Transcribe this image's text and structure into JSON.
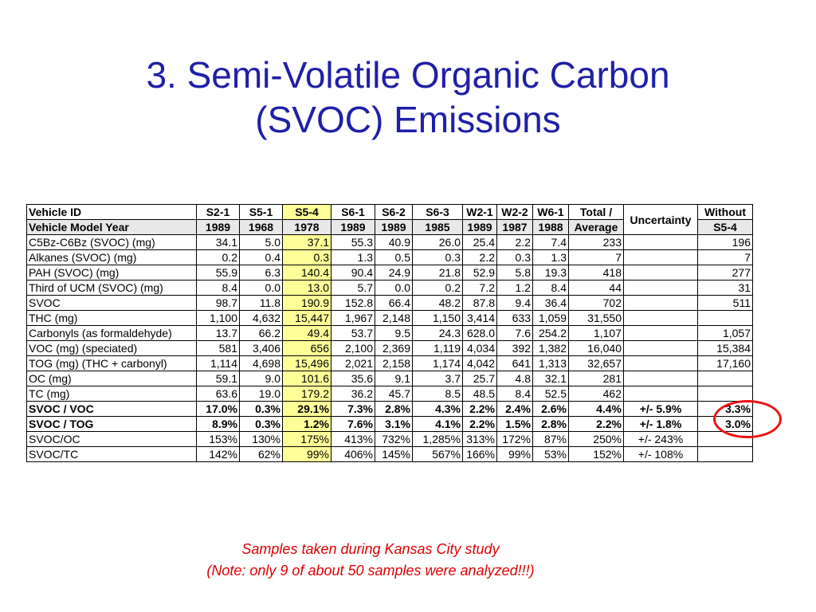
{
  "title": {
    "line1": "3. Semi-Volatile Organic Carbon",
    "line2": "(SVOC) Emissions"
  },
  "table": {
    "header1": [
      "Vehicle ID",
      "S2-1",
      "S5-1",
      "S5-4",
      "S6-1",
      "S6-2",
      "S6-3",
      "W2-1",
      "W2-2",
      "W6-1",
      "Total /",
      "Uncertainty",
      "Without"
    ],
    "header2": [
      "Vehicle Model Year",
      "1989",
      "1968",
      "1978",
      "1989",
      "1989",
      "1985",
      "1989",
      "1987",
      "1988",
      "Average",
      "S5-4"
    ],
    "rows": [
      [
        "C5Bz-C6Bz (SVOC) (mg)",
        "34.1",
        "5.0",
        "37.1",
        "55.3",
        "40.9",
        "26.0",
        "25.4",
        "2.2",
        "7.4",
        "233",
        "",
        "196"
      ],
      [
        "Alkanes (SVOC) (mg)",
        "0.2",
        "0.4",
        "0.3",
        "1.3",
        "0.5",
        "0.3",
        "2.2",
        "0.3",
        "1.3",
        "7",
        "",
        "7"
      ],
      [
        "PAH (SVOC) (mg)",
        "55.9",
        "6.3",
        "140.4",
        "90.4",
        "24.9",
        "21.8",
        "52.9",
        "5.8",
        "19.3",
        "418",
        "",
        "277"
      ],
      [
        "Third of UCM (SVOC) (mg)",
        "8.4",
        "0.0",
        "13.0",
        "5.7",
        "0.0",
        "0.2",
        "7.2",
        "1.2",
        "8.4",
        "44",
        "",
        "31"
      ],
      [
        "SVOC",
        "98.7",
        "11.8",
        "190.9",
        "152.8",
        "66.4",
        "48.2",
        "87.8",
        "9.4",
        "36.4",
        "702",
        "",
        "511"
      ],
      [
        "THC (mg)",
        "1,100",
        "4,632",
        "15,447",
        "1,967",
        "2,148",
        "1,150",
        "3,414",
        "633",
        "1,059",
        "31,550",
        "",
        ""
      ],
      [
        "Carbonyls (as formaldehyde)",
        "13.7",
        "66.2",
        "49.4",
        "53.7",
        "9.5",
        "24.3",
        "628.0",
        "7.6",
        "254.2",
        "1,107",
        "",
        "1,057"
      ],
      [
        "VOC (mg) (speciated)",
        "581",
        "3,406",
        "656",
        "2,100",
        "2,369",
        "1,119",
        "4,034",
        "392",
        "1,382",
        "16,040",
        "",
        "15,384"
      ],
      [
        "TOG (mg) (THC + carbonyl)",
        "1,114",
        "4,698",
        "15,496",
        "2,021",
        "2,158",
        "1,174",
        "4,042",
        "641",
        "1,313",
        "32,657",
        "",
        "17,160"
      ],
      [
        "OC (mg)",
        "59.1",
        "9.0",
        "101.6",
        "35.6",
        "9.1",
        "3.7",
        "25.7",
        "4.8",
        "32.1",
        "281",
        "",
        ""
      ],
      [
        "TC (mg)",
        "63.6",
        "19.0",
        "179.2",
        "36.2",
        "45.7",
        "8.5",
        "48.5",
        "8.4",
        "52.5",
        "462",
        "",
        ""
      ],
      [
        "SVOC / VOC",
        "17.0%",
        "0.3%",
        "29.1%",
        "7.3%",
        "2.8%",
        "4.3%",
        "2.2%",
        "2.4%",
        "2.6%",
        "4.4%",
        "+/- 5.9%",
        "3.3%"
      ],
      [
        "SVOC / TOG",
        "8.9%",
        "0.3%",
        "1.2%",
        "7.6%",
        "3.1%",
        "4.1%",
        "2.2%",
        "1.5%",
        "2.8%",
        "2.2%",
        "+/- 1.8%",
        "3.0%"
      ],
      [
        "SVOC/OC",
        "153%",
        "130%",
        "175%",
        "413%",
        "732%",
        "1,285%",
        "313%",
        "172%",
        "87%",
        "250%",
        "+/- 243%",
        ""
      ],
      [
        "SVOC/TC",
        "142%",
        "62%",
        "99%",
        "406%",
        "145%",
        "567%",
        "166%",
        "99%",
        "53%",
        "152%",
        "+/- 108%",
        ""
      ]
    ],
    "bold_rows": [
      11,
      12
    ],
    "highlight_column": 3,
    "highlight_color": "#ffff99",
    "circle_color": "#ee1111"
  },
  "note": {
    "line1": "Samples taken during Kansas City study",
    "line2": "(Note: only 9 of about 50 samples were analyzed!!!)"
  },
  "colors": {
    "title": "#1f1fa8",
    "note": "#dd0000"
  }
}
